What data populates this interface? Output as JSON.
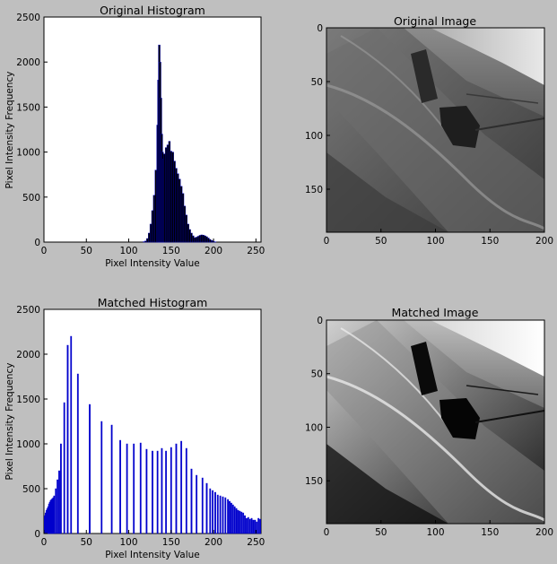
{
  "figure": {
    "background": "#bfbfbf",
    "bar_color": "#0000cc",
    "bar_dark": "#000000"
  },
  "chart_data": [
    {
      "type": "bar",
      "title": "Original Histogram",
      "xlabel": "Pixel Intensity Value",
      "ylabel": "Pixel Intensity Frequency",
      "xlim": [
        0,
        256
      ],
      "ylim": [
        0,
        2500
      ],
      "xticks": [
        "0",
        "50",
        "100",
        "150",
        "200",
        "250"
      ],
      "yticks": [
        "0",
        "500",
        "1000",
        "1500",
        "2000",
        "2500"
      ],
      "grid": false,
      "x": [
        118,
        120,
        122,
        124,
        126,
        128,
        130,
        132,
        134,
        135,
        136,
        137,
        138,
        139,
        140,
        141,
        142,
        144,
        146,
        148,
        150,
        152,
        154,
        156,
        158,
        160,
        162,
        164,
        166,
        168,
        170,
        172,
        174,
        176,
        178,
        180,
        182,
        184,
        186,
        188,
        190,
        192,
        194,
        196,
        198,
        200,
        202
      ],
      "values": [
        5,
        12,
        40,
        100,
        200,
        350,
        520,
        800,
        1300,
        1800,
        2190,
        2000,
        1600,
        1200,
        1000,
        920,
        980,
        1050,
        1080,
        1120,
        1010,
        1000,
        900,
        820,
        760,
        700,
        620,
        540,
        400,
        300,
        200,
        140,
        100,
        70,
        50,
        55,
        65,
        75,
        80,
        78,
        70,
        60,
        45,
        30,
        18,
        8,
        3
      ]
    },
    {
      "type": "bar",
      "title": "Matched Histogram",
      "xlabel": "Pixel Intensity Value",
      "ylabel": "Pixel Intensity Frequency",
      "xlim": [
        0,
        256
      ],
      "ylim": [
        0,
        2500
      ],
      "xticks": [
        "0",
        "50",
        "100",
        "150",
        "200",
        "250"
      ],
      "yticks": [
        "0",
        "500",
        "1000",
        "1500",
        "2000",
        "2500"
      ],
      "grid": false,
      "x": [
        1,
        2,
        3,
        4,
        5,
        6,
        7,
        8,
        9,
        10,
        11,
        12,
        14,
        16,
        18,
        20,
        24,
        28,
        32,
        40,
        54,
        68,
        80,
        90,
        98,
        106,
        114,
        121,
        128,
        134,
        139,
        144,
        150,
        156,
        162,
        168,
        174,
        180,
        187,
        192,
        196,
        199,
        202,
        205,
        208,
        211,
        214,
        217,
        219,
        221,
        223,
        225,
        227,
        229,
        231,
        233,
        235,
        237,
        239,
        241,
        243,
        245,
        247,
        249,
        251,
        253,
        255
      ],
      "values": [
        200,
        230,
        260,
        280,
        300,
        330,
        350,
        370,
        380,
        390,
        400,
        420,
        500,
        600,
        700,
        1000,
        1460,
        2100,
        2200,
        1780,
        1440,
        1250,
        1210,
        1040,
        1000,
        1000,
        1010,
        940,
        920,
        920,
        950,
        920,
        960,
        1000,
        1030,
        950,
        720,
        650,
        620,
        560,
        500,
        480,
        460,
        430,
        420,
        410,
        400,
        380,
        360,
        340,
        320,
        300,
        280,
        260,
        250,
        240,
        230,
        200,
        170,
        180,
        160,
        170,
        150,
        150,
        130,
        170,
        160
      ]
    },
    {
      "type": "image",
      "title": "Original Image",
      "xlim": [
        0,
        200
      ],
      "ylim": [
        190,
        0
      ],
      "xticks": [
        "0",
        "50",
        "100",
        "150",
        "200"
      ],
      "yticks": [
        "0",
        "50",
        "100",
        "150"
      ]
    },
    {
      "type": "image",
      "title": "Matched Image",
      "xlim": [
        0,
        200
      ],
      "ylim": [
        190,
        0
      ],
      "xticks": [
        "0",
        "50",
        "100",
        "150",
        "200"
      ],
      "yticks": [
        "0",
        "50",
        "100",
        "150"
      ]
    }
  ]
}
